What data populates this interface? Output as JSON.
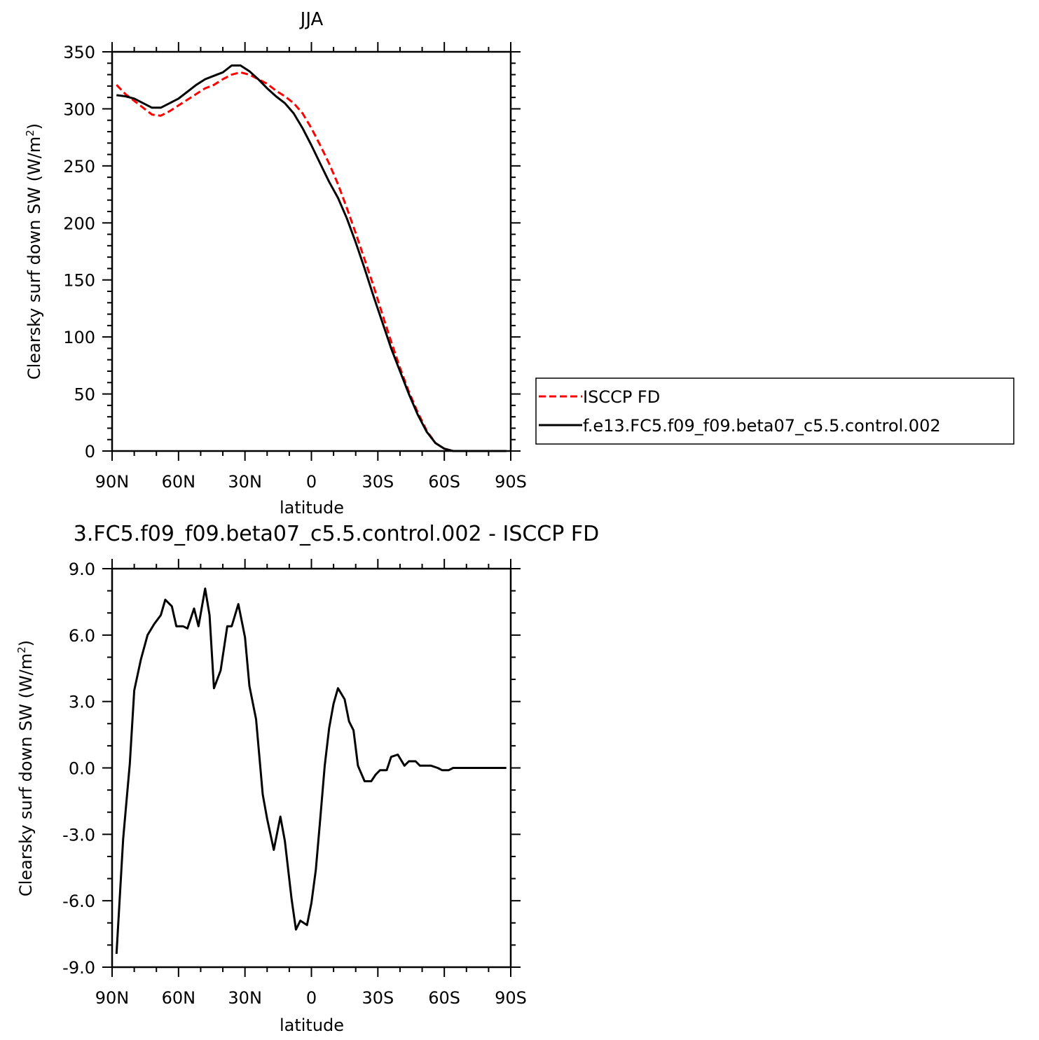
{
  "colors": {
    "obs": "#ff0000",
    "model": "#000000",
    "axis": "#000000"
  },
  "legend": {
    "placement": "right-of-top-panel",
    "entries": [
      {
        "label": "ISCCP FD",
        "color": "#ff0000",
        "style": "dashed"
      },
      {
        "label": "f.e13.FC5.f09_f09.beta07_c5.5.control.002",
        "color": "#000000",
        "style": "solid"
      }
    ]
  },
  "chart_data": [
    {
      "type": "line",
      "title": "JJA",
      "xlabel": "latitude",
      "ylabel_main": "Clearsky surf down SW (W/m",
      "ylabel_sup": "2",
      "ylabel_end": ")",
      "x_units": "degrees latitude (positive = N)",
      "xlim": [
        90,
        -90
      ],
      "ylim": [
        0,
        350
      ],
      "x_ticks": [
        90,
        60,
        30,
        0,
        -30,
        -60,
        -90
      ],
      "x_tick_labels": [
        "90N",
        "60N",
        "30N",
        "0",
        "30S",
        "60S",
        "90S"
      ],
      "y_ticks": [
        0,
        50,
        100,
        150,
        200,
        250,
        300,
        350
      ],
      "y_tick_labels": [
        "0",
        "50",
        "100",
        "150",
        "200",
        "250",
        "300",
        "350"
      ],
      "grid": false,
      "legend": "right",
      "series": [
        {
          "name": "ISCCP FD",
          "color": "#ff0000",
          "style": "dashed",
          "x": [
            88,
            84,
            80,
            76,
            72,
            68,
            64,
            60,
            56,
            52,
            48,
            44,
            40,
            36,
            32,
            28,
            24,
            20,
            16,
            12,
            8,
            4,
            0,
            -4,
            -8,
            -12,
            -16,
            -20,
            -24,
            -28,
            -32,
            -36,
            -40,
            -44,
            -48,
            -52,
            -56,
            -60,
            -64,
            -68,
            -72,
            -76,
            -80,
            -84,
            -88
          ],
          "y": [
            321,
            313,
            307,
            301,
            295,
            294,
            298,
            303,
            308,
            313,
            318,
            321,
            326,
            330,
            332,
            330,
            326,
            322,
            316,
            311,
            305,
            296,
            283,
            268,
            252,
            234,
            213,
            191,
            168,
            145,
            120,
            96,
            73,
            52,
            34,
            18,
            7,
            2,
            0,
            0,
            0,
            0,
            0,
            0,
            0
          ]
        },
        {
          "name": "f.e13.FC5.f09_f09.beta07_c5.5.control.002",
          "color": "#000000",
          "style": "solid",
          "x": [
            88,
            84,
            80,
            76,
            72,
            68,
            64,
            60,
            56,
            52,
            48,
            44,
            40,
            36,
            32,
            28,
            24,
            20,
            16,
            12,
            8,
            4,
            0,
            -4,
            -8,
            -12,
            -16,
            -20,
            -24,
            -28,
            -32,
            -36,
            -40,
            -44,
            -48,
            -52,
            -56,
            -60,
            -64,
            -68,
            -72,
            -76,
            -80,
            -84,
            -88
          ],
          "y": [
            312,
            311,
            309,
            305,
            301,
            301,
            305,
            309,
            315,
            321,
            326,
            329,
            332,
            338,
            338,
            333,
            326,
            318,
            311,
            305,
            296,
            283,
            268,
            252,
            236,
            222,
            204,
            183,
            160,
            136,
            113,
            90,
            70,
            50,
            32,
            17,
            7,
            2,
            0,
            0,
            0,
            0,
            0,
            0,
            0
          ]
        }
      ]
    },
    {
      "type": "line",
      "title": "3.FC5.f09_f09.beta07_c5.5.control.002 - ISCCP FD",
      "xlabel": "latitude",
      "ylabel_main": "Clearsky surf down SW (W/m",
      "ylabel_sup": "2",
      "ylabel_end": ")",
      "x_units": "degrees latitude (positive = N)",
      "xlim": [
        90,
        -90
      ],
      "ylim": [
        -9,
        9
      ],
      "x_ticks": [
        90,
        60,
        30,
        0,
        -30,
        -60,
        -90
      ],
      "x_tick_labels": [
        "90N",
        "60N",
        "30N",
        "0",
        "30S",
        "60S",
        "90S"
      ],
      "y_ticks": [
        -9,
        -6,
        -3,
        0,
        3,
        6,
        9
      ],
      "y_tick_labels": [
        "-9.0",
        "-6.0",
        "-3.0",
        "0.0",
        "3.0",
        "6.0",
        "9.0"
      ],
      "grid": false,
      "series": [
        {
          "color": "#000000",
          "style": "solid",
          "x": [
            88,
            85,
            82,
            80,
            77,
            74,
            71,
            68,
            66,
            63,
            61,
            58,
            56,
            53,
            51,
            48,
            46,
            44,
            41,
            38,
            36,
            33,
            30,
            28,
            25,
            22,
            20,
            17,
            14,
            12,
            9,
            7,
            5,
            2,
            0,
            -2,
            -4,
            -6,
            -8,
            -10,
            -12,
            -15,
            -17,
            -19,
            -21,
            -24,
            -27,
            -29,
            -31,
            -34,
            -36,
            -39,
            -42,
            -44,
            -47,
            -49,
            -52,
            -54,
            -57,
            -59,
            -62,
            -64,
            -66,
            -69,
            -72,
            -74,
            -77,
            -80,
            -84,
            -88
          ],
          "y": [
            -8.4,
            -3.2,
            0.2,
            3.5,
            4.9,
            6.0,
            6.5,
            6.9,
            7.6,
            7.3,
            6.4,
            6.4,
            6.3,
            7.2,
            6.4,
            8.1,
            6.9,
            3.6,
            4.4,
            6.4,
            6.4,
            7.4,
            5.9,
            3.7,
            2.2,
            -1.2,
            -2.3,
            -3.7,
            -2.2,
            -3.3,
            -5.9,
            -7.3,
            -6.9,
            -7.1,
            -6.1,
            -4.6,
            -2.3,
            0.1,
            1.8,
            2.9,
            3.6,
            3.1,
            2.1,
            1.7,
            0.1,
            -0.6,
            -0.6,
            -0.3,
            -0.1,
            -0.1,
            0.5,
            0.6,
            0.1,
            0.3,
            0.3,
            0.1,
            0.1,
            0.1,
            0.0,
            -0.1,
            -0.1,
            0.0,
            0.0,
            0.0,
            0.0,
            0.0,
            0.0,
            0.0,
            0.0,
            0.0
          ]
        }
      ]
    }
  ]
}
